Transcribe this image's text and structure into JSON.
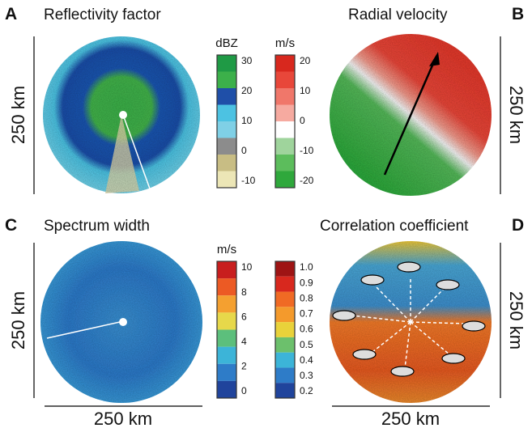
{
  "panels": [
    {
      "letter": "A",
      "title": "Reflectivity factor",
      "scale_side": "250 km"
    },
    {
      "letter": "B",
      "title": "Radial velocity",
      "scale_side": "250 km"
    },
    {
      "letter": "C",
      "title": "Spectrum width",
      "scale_side": "250 km",
      "scale_bottom": "250 km"
    },
    {
      "letter": "D",
      "title": "Correlation coefficient",
      "scale_side": "250 km",
      "scale_bottom": "250 km"
    }
  ],
  "colorbars": [
    {
      "unit": "dBZ",
      "ticks": [
        "30",
        "20",
        "10",
        "0",
        "-10"
      ]
    },
    {
      "unit": "m/s",
      "ticks": [
        "20",
        "10",
        "0",
        "-10",
        "-20"
      ]
    },
    {
      "unit": "m/s",
      "ticks": [
        "10",
        "8",
        "6",
        "4",
        "2",
        "0"
      ]
    },
    {
      "ticks": [
        "1.0",
        "0.9",
        "0.8",
        "0.7",
        "0.6",
        "0.5",
        "0.4",
        "0.3",
        "0.2"
      ]
    }
  ]
}
